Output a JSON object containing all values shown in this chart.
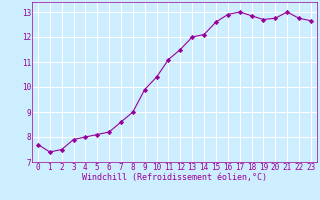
{
  "x": [
    0,
    1,
    2,
    3,
    4,
    5,
    6,
    7,
    8,
    9,
    10,
    11,
    12,
    13,
    14,
    15,
    16,
    17,
    18,
    19,
    20,
    21,
    22,
    23
  ],
  "y": [
    7.7,
    7.4,
    7.5,
    7.9,
    8.0,
    8.1,
    8.2,
    8.6,
    9.0,
    9.9,
    10.4,
    11.1,
    11.5,
    12.0,
    12.1,
    12.6,
    12.9,
    13.0,
    12.85,
    12.7,
    12.75,
    13.0,
    12.75,
    12.65
  ],
  "line_color": "#990099",
  "marker": "D",
  "marker_size": 2.2,
  "bg_color": "#cceeff",
  "grid_color": "#ffffff",
  "xlabel": "Windchill (Refroidissement éolien,°C)",
  "xlabel_fontsize": 6.0,
  "tick_fontsize": 5.5,
  "xlim": [
    -0.5,
    23.5
  ],
  "ylim": [
    7.0,
    13.4
  ],
  "yticks": [
    7,
    8,
    9,
    10,
    11,
    12,
    13
  ],
  "xticks": [
    0,
    1,
    2,
    3,
    4,
    5,
    6,
    7,
    8,
    9,
    10,
    11,
    12,
    13,
    14,
    15,
    16,
    17,
    18,
    19,
    20,
    21,
    22,
    23
  ]
}
